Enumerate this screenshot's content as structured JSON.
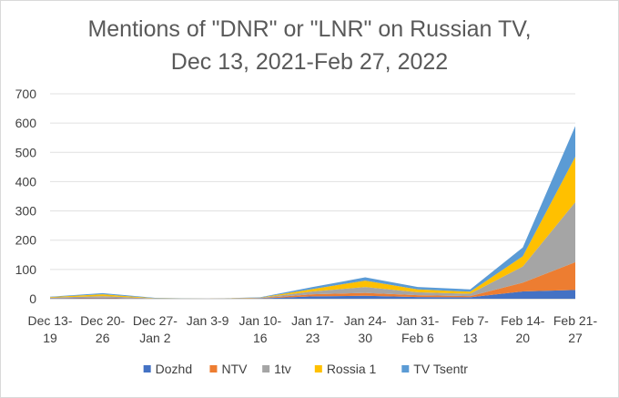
{
  "chart_data": {
    "type": "area",
    "stacked": true,
    "title_lines": [
      "Mentions of \"DNR\" or \"LNR\" on Russian TV,",
      "Dec 13, 2021-Feb 27, 2022"
    ],
    "categories": [
      [
        "Dec 13-",
        "19"
      ],
      [
        "Dec 20-",
        "26"
      ],
      [
        "Dec 27-",
        "Jan 2"
      ],
      [
        "Jan 3-9"
      ],
      [
        "Jan 10-",
        "16"
      ],
      [
        "Jan 17-",
        "23"
      ],
      [
        "Jan 24-",
        "30"
      ],
      [
        "Jan 31-",
        "Feb 6"
      ],
      [
        "Feb 7-",
        "13"
      ],
      [
        "Feb 14-",
        "20"
      ],
      [
        "Feb 21-",
        "27"
      ]
    ],
    "ylim": [
      0,
      700
    ],
    "yticks": [
      0,
      100,
      200,
      300,
      400,
      500,
      600,
      700
    ],
    "grid": true,
    "legend_position": "bottom",
    "series": [
      {
        "name": "Dozhd",
        "color": "#4472C4",
        "values": [
          1,
          2,
          0,
          0,
          1,
          8,
          10,
          6,
          5,
          25,
          30
        ]
      },
      {
        "name": "NTV",
        "color": "#ED7D31",
        "values": [
          1,
          2,
          0,
          0,
          1,
          7,
          10,
          6,
          4,
          30,
          95
        ]
      },
      {
        "name": "1tv",
        "color": "#A5A5A5",
        "values": [
          2,
          5,
          1,
          0,
          1,
          10,
          20,
          10,
          8,
          55,
          205
        ]
      },
      {
        "name": "Rossia 1",
        "color": "#FFC000",
        "values": [
          2,
          6,
          1,
          0,
          1,
          8,
          22,
          10,
          7,
          35,
          155
        ]
      },
      {
        "name": "TV Tsentr",
        "color": "#5B9BD5",
        "values": [
          1,
          4,
          1,
          0,
          1,
          7,
          11,
          8,
          8,
          30,
          105
        ]
      }
    ]
  }
}
